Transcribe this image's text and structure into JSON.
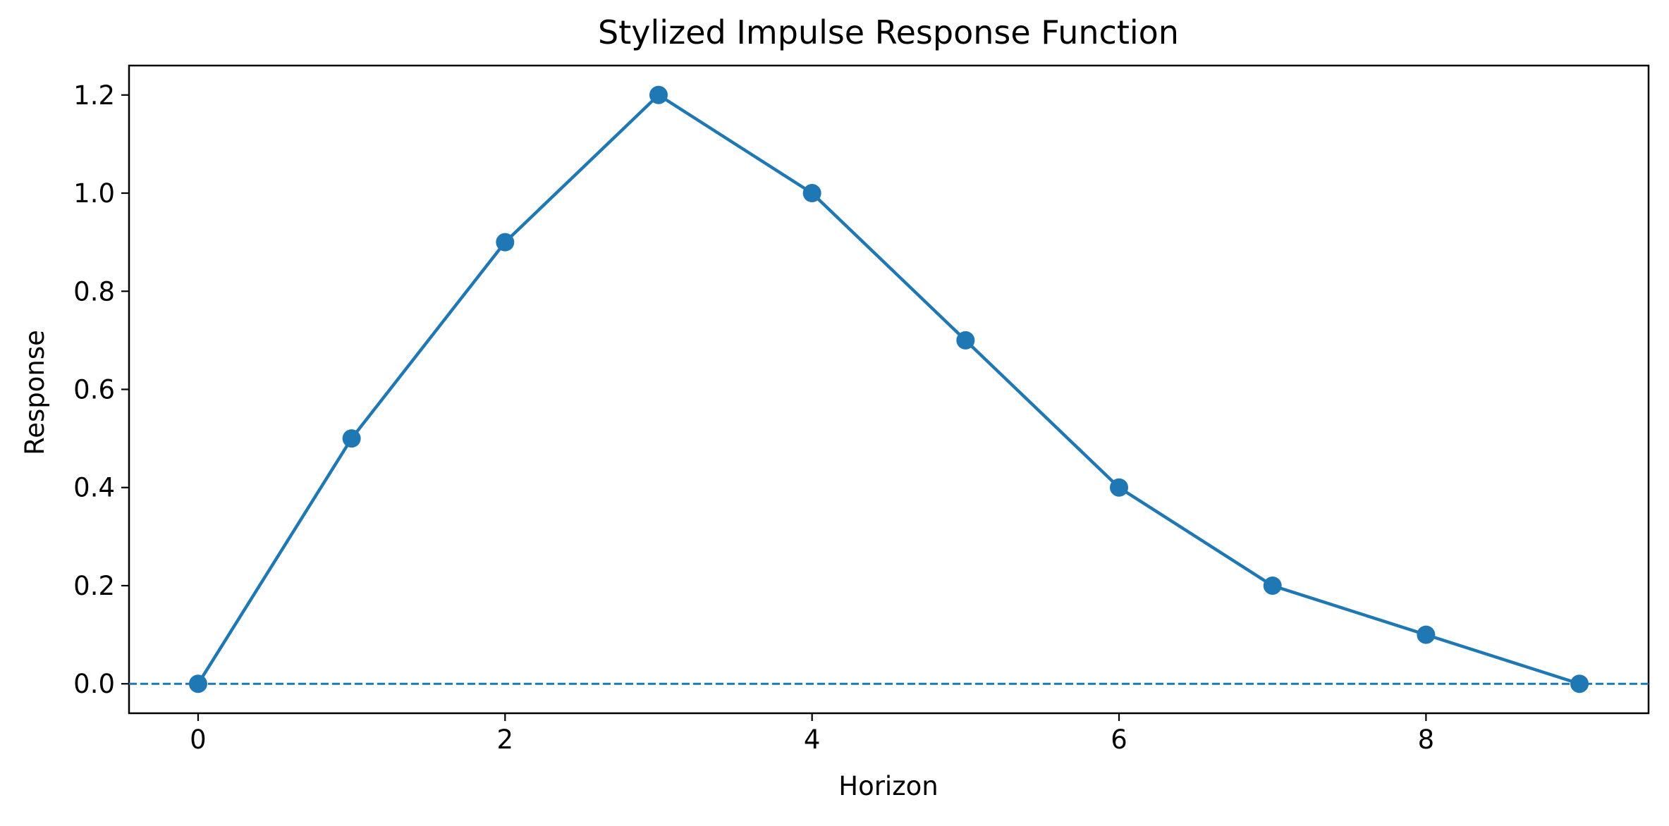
{
  "chart_data": {
    "type": "line",
    "title": "Stylized Impulse Response Function",
    "xlabel": "Horizon",
    "ylabel": "Response",
    "xlim": [
      -0.45,
      9.45
    ],
    "ylim": [
      -0.06,
      1.26
    ],
    "x_ticks": [
      0,
      2,
      4,
      6,
      8
    ],
    "x_tick_labels": [
      "0",
      "2",
      "4",
      "6",
      "8"
    ],
    "y_ticks": [
      0.0,
      0.2,
      0.4,
      0.6,
      0.8,
      1.0,
      1.2
    ],
    "y_tick_labels": [
      "0.0",
      "0.2",
      "0.4",
      "0.6",
      "0.8",
      "1.0",
      "1.2"
    ],
    "grid": false,
    "x": [
      0,
      1,
      2,
      3,
      4,
      5,
      6,
      7,
      8,
      9
    ],
    "series": [
      {
        "values": [
          0.0,
          0.5,
          0.9,
          1.2,
          1.0,
          0.7,
          0.4,
          0.2,
          0.1,
          0.0
        ],
        "color": "#1f77b4",
        "marker": "circle"
      }
    ],
    "reference_line": {
      "y": 0.0,
      "style": "dashed",
      "color": "#1f77b4"
    }
  }
}
